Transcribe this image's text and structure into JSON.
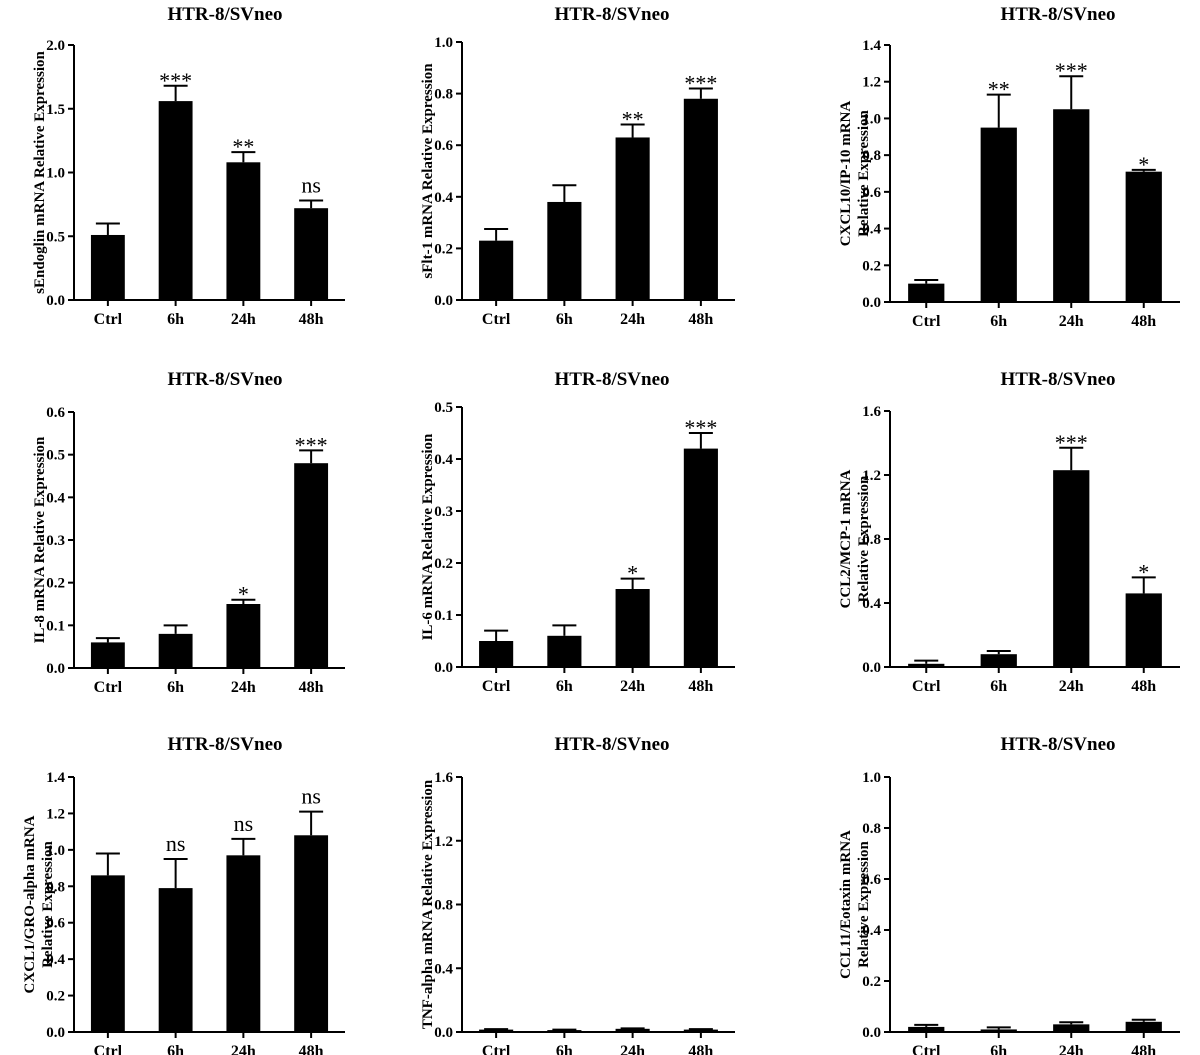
{
  "chart_data": [
    {
      "type": "bar",
      "title": "HTR-8/SVneo",
      "ylabel": "sEndoglin mRNA Relative Expression",
      "categories": [
        "Ctrl",
        "6h",
        "24h",
        "48h"
      ],
      "values": [
        0.51,
        1.56,
        1.08,
        0.72
      ],
      "errors": [
        0.09,
        0.12,
        0.08,
        0.06
      ],
      "significance": [
        "",
        "***",
        "**",
        "ns"
      ],
      "ylim": [
        0,
        2.0
      ],
      "yticks": [
        "0.0",
        "0.5",
        "1.0",
        "1.5",
        "2.0"
      ],
      "color": "#000000"
    },
    {
      "type": "bar",
      "title": "HTR-8/SVneo",
      "ylabel": "sFlt-1 mRNA Relative Expression",
      "categories": [
        "Ctrl",
        "6h",
        "24h",
        "48h"
      ],
      "values": [
        0.23,
        0.38,
        0.63,
        0.78
      ],
      "errors": [
        0.045,
        0.065,
        0.05,
        0.04
      ],
      "significance": [
        "",
        "",
        "**",
        "***"
      ],
      "ylim": [
        0,
        1.0
      ],
      "yticks": [
        "0.0",
        "0.2",
        "0.4",
        "0.6",
        "0.8",
        "1.0"
      ],
      "color": "#000000"
    },
    {
      "type": "bar",
      "title": "HTR-8/SVneo",
      "ylabel": "CXCL10/IP-10 mRNA",
      "ylabel2": "Relative Expression",
      "categories": [
        "Ctrl",
        "6h",
        "24h",
        "48h"
      ],
      "values": [
        0.1,
        0.95,
        1.05,
        0.71
      ],
      "errors": [
        0.02,
        0.18,
        0.18,
        0.01
      ],
      "significance": [
        "",
        "**",
        "***",
        "*"
      ],
      "ylim": [
        0,
        1.4
      ],
      "yticks": [
        "0.0",
        "0.2",
        "0.4",
        "0.6",
        "0.8",
        "1.0",
        "1.2",
        "1.4"
      ],
      "color": "#000000"
    },
    {
      "type": "bar",
      "title": "HTR-8/SVneo",
      "ylabel": "IL-8 mRNA Relative Expression",
      "categories": [
        "Ctrl",
        "6h",
        "24h",
        "48h"
      ],
      "values": [
        0.06,
        0.08,
        0.15,
        0.48
      ],
      "errors": [
        0.01,
        0.02,
        0.01,
        0.03
      ],
      "significance": [
        "",
        "",
        "*",
        "***"
      ],
      "ylim": [
        0,
        0.6
      ],
      "yticks": [
        "0.0",
        "0.1",
        "0.2",
        "0.3",
        "0.4",
        "0.5",
        "0.6"
      ],
      "color": "#000000"
    },
    {
      "type": "bar",
      "title": "HTR-8/SVneo",
      "ylabel": "IL-6 mRNA Relative Expression",
      "categories": [
        "Ctrl",
        "6h",
        "24h",
        "48h"
      ],
      "values": [
        0.05,
        0.06,
        0.15,
        0.42
      ],
      "errors": [
        0.02,
        0.02,
        0.02,
        0.03
      ],
      "significance": [
        "",
        "",
        "*",
        "***"
      ],
      "ylim": [
        0,
        0.5
      ],
      "yticks": [
        "0.0",
        "0.1",
        "0.2",
        "0.3",
        "0.4",
        "0.5"
      ],
      "color": "#000000"
    },
    {
      "type": "bar",
      "title": "HTR-8/SVneo",
      "ylabel": "CCL2/MCP-1 mRNA",
      "ylabel2": "Relative Expression",
      "categories": [
        "Ctrl",
        "6h",
        "24h",
        "48h"
      ],
      "values": [
        0.02,
        0.08,
        1.23,
        0.46
      ],
      "errors": [
        0.02,
        0.02,
        0.14,
        0.1
      ],
      "significance": [
        "",
        "",
        "***",
        "*"
      ],
      "ylim": [
        0,
        1.6
      ],
      "yticks": [
        "0.0",
        "0.4",
        "0.8",
        "1.2",
        "1.6"
      ],
      "color": "#000000"
    },
    {
      "type": "bar",
      "title": "HTR-8/SVneo",
      "ylabel": "CXCL1/GRO-alpha mRNA",
      "ylabel2": "Relative Expression",
      "categories": [
        "Ctrl",
        "6h",
        "24h",
        "48h"
      ],
      "values": [
        0.86,
        0.79,
        0.97,
        1.08
      ],
      "errors": [
        0.12,
        0.16,
        0.09,
        0.13
      ],
      "significance": [
        "",
        "ns",
        "ns",
        "ns"
      ],
      "ylim": [
        0,
        1.4
      ],
      "yticks": [
        "0.0",
        "0.2",
        "0.4",
        "0.6",
        "0.8",
        "1.0",
        "1.2",
        "1.4"
      ],
      "color": "#000000"
    },
    {
      "type": "bar",
      "title": "HTR-8/SVneo",
      "ylabel": "TNF-alpha mRNA Relative Expression",
      "categories": [
        "Ctrl",
        "6h",
        "24h",
        "48h"
      ],
      "values": [
        0.015,
        0.012,
        0.02,
        0.015
      ],
      "errors": [
        0.003,
        0.003,
        0.003,
        0.003
      ],
      "significance": [
        "",
        "",
        "",
        ""
      ],
      "ylim": [
        0,
        1.6
      ],
      "yticks": [
        "0.0",
        "0.4",
        "0.8",
        "1.2",
        "1.6"
      ],
      "color": "#000000"
    },
    {
      "type": "bar",
      "title": "HTR-8/SVneo",
      "ylabel": "CCL11/Eotaxin mRNA",
      "ylabel2": "Relative Expression",
      "categories": [
        "Ctrl",
        "6h",
        "24h",
        "48h"
      ],
      "values": [
        0.02,
        0.01,
        0.03,
        0.04
      ],
      "errors": [
        0.008,
        0.008,
        0.008,
        0.008
      ],
      "significance": [
        "",
        "",
        "",
        ""
      ],
      "ylim": [
        0,
        1.0
      ],
      "yticks": [
        "0.0",
        "0.2",
        "0.4",
        "0.6",
        "0.8",
        "1.0"
      ],
      "color": "#000000"
    }
  ]
}
